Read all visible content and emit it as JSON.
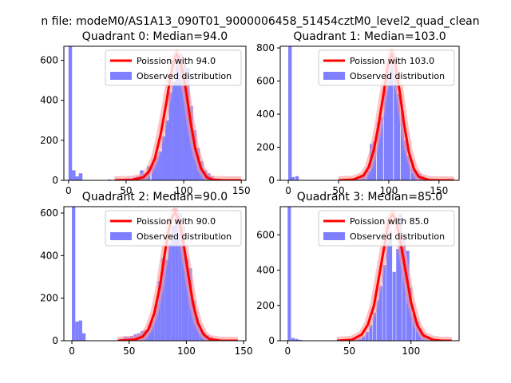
{
  "figure": {
    "title": "n file: modeM0/AS1A13_090T01_9000006458_51454cztM0_level2_quad_clean"
  },
  "colors": {
    "histogram": "#8080ff",
    "poisson_line": "#ff0000",
    "poisson_glow": "#ff9999",
    "axes": "#000000",
    "background": "#ffffff"
  },
  "chart_data": [
    {
      "type": "bar",
      "title": "Quadrant 0: Median=94.0",
      "xlim": [
        -4,
        154
      ],
      "ylim": [
        0,
        670
      ],
      "xticks": [
        0,
        50,
        100,
        150
      ],
      "yticks": [
        0,
        200,
        400,
        600
      ],
      "series": [
        {
          "name": "Poission with 94.0",
          "kind": "line",
          "x": [
            40,
            55,
            65,
            70,
            75,
            80,
            85,
            88,
            91,
            94,
            97,
            100,
            103,
            106,
            110,
            115,
            120,
            125,
            135,
            150
          ],
          "y": [
            0,
            2,
            15,
            45,
            110,
            230,
            390,
            500,
            590,
            635,
            590,
            520,
            410,
            290,
            160,
            60,
            15,
            3,
            0,
            0
          ]
        },
        {
          "name": "Observed distribution",
          "kind": "histogram",
          "bin_width": 3.1,
          "bins": [
            {
              "x": 0,
              "y": 670
            },
            {
              "x": 3,
              "y": 50
            },
            {
              "x": 6,
              "y": 20
            },
            {
              "x": 9,
              "y": 35
            },
            {
              "x": 34,
              "y": 4
            },
            {
              "x": 44,
              "y": 8
            },
            {
              "x": 50,
              "y": 10
            },
            {
              "x": 56,
              "y": 15
            },
            {
              "x": 59,
              "y": 20
            },
            {
              "x": 62,
              "y": 50
            },
            {
              "x": 65,
              "y": 35
            },
            {
              "x": 68,
              "y": 70
            },
            {
              "x": 72,
              "y": 85
            },
            {
              "x": 75,
              "y": 120
            },
            {
              "x": 78,
              "y": 145
            },
            {
              "x": 81,
              "y": 220
            },
            {
              "x": 84,
              "y": 300
            },
            {
              "x": 87,
              "y": 440
            },
            {
              "x": 90,
              "y": 495
            },
            {
              "x": 93,
              "y": 600
            },
            {
              "x": 96,
              "y": 630
            },
            {
              "x": 99,
              "y": 585
            },
            {
              "x": 102,
              "y": 560
            },
            {
              "x": 105,
              "y": 370
            },
            {
              "x": 108,
              "y": 250
            },
            {
              "x": 111,
              "y": 160
            },
            {
              "x": 114,
              "y": 95
            },
            {
              "x": 117,
              "y": 50
            },
            {
              "x": 120,
              "y": 35
            },
            {
              "x": 123,
              "y": 20
            },
            {
              "x": 126,
              "y": 10
            },
            {
              "x": 129,
              "y": 6
            },
            {
              "x": 132,
              "y": 4
            },
            {
              "x": 138,
              "y": 3
            },
            {
              "x": 144,
              "y": 2
            }
          ]
        }
      ],
      "legend": "upper right"
    },
    {
      "type": "bar",
      "title": "Quadrant 1: Median=103.0",
      "xlim": [
        -8,
        170
      ],
      "ylim": [
        0,
        810
      ],
      "xticks": [
        0,
        50,
        100,
        150
      ],
      "yticks": [
        0,
        200,
        400,
        600,
        800
      ],
      "series": [
        {
          "name": "Poission with 103.0",
          "kind": "line",
          "x": [
            50,
            65,
            75,
            80,
            85,
            90,
            95,
            99,
            103,
            107,
            111,
            115,
            120,
            125,
            130,
            140,
            150,
            165
          ],
          "y": [
            0,
            5,
            30,
            80,
            180,
            340,
            530,
            690,
            770,
            690,
            530,
            350,
            170,
            70,
            20,
            2,
            0,
            0
          ]
        },
        {
          "name": "Observed distribution",
          "kind": "histogram",
          "bin_width": 3.4,
          "bins": [
            {
              "x": 0,
              "y": 810
            },
            {
              "x": 3,
              "y": 20
            },
            {
              "x": 7,
              "y": 25
            },
            {
              "x": 67,
              "y": 12
            },
            {
              "x": 71,
              "y": 25
            },
            {
              "x": 74,
              "y": 40
            },
            {
              "x": 78,
              "y": 60
            },
            {
              "x": 81,
              "y": 220
            },
            {
              "x": 84,
              "y": 235
            },
            {
              "x": 88,
              "y": 350
            },
            {
              "x": 91,
              "y": 380
            },
            {
              "x": 95,
              "y": 550
            },
            {
              "x": 98,
              "y": 650
            },
            {
              "x": 101,
              "y": 700
            },
            {
              "x": 105,
              "y": 720
            },
            {
              "x": 108,
              "y": 520
            },
            {
              "x": 112,
              "y": 420
            },
            {
              "x": 115,
              "y": 240
            },
            {
              "x": 118,
              "y": 150
            },
            {
              "x": 122,
              "y": 95
            },
            {
              "x": 125,
              "y": 60
            },
            {
              "x": 129,
              "y": 40
            },
            {
              "x": 132,
              "y": 25
            },
            {
              "x": 135,
              "y": 15
            },
            {
              "x": 139,
              "y": 8
            },
            {
              "x": 142,
              "y": 4
            },
            {
              "x": 150,
              "y": 2
            },
            {
              "x": 162,
              "y": 2
            }
          ]
        }
      ],
      "legend": "upper right"
    },
    {
      "type": "bar",
      "title": "Quadrant 2: Median=90.0",
      "xlim": [
        -7,
        152
      ],
      "ylim": [
        0,
        630
      ],
      "xticks": [
        0,
        50,
        100,
        150
      ],
      "yticks": [
        0,
        200,
        400,
        600
      ],
      "series": [
        {
          "name": "Poission with 90.0",
          "kind": "line",
          "x": [
            40,
            55,
            62,
            67,
            72,
            77,
            82,
            86,
            90,
            94,
            98,
            102,
            106,
            110,
            115,
            120,
            130,
            145
          ],
          "y": [
            0,
            5,
            20,
            55,
            130,
            260,
            440,
            560,
            605,
            560,
            440,
            300,
            170,
            85,
            30,
            8,
            0,
            0
          ]
        },
        {
          "name": "Observed distribution",
          "kind": "histogram",
          "bin_width": 3.0,
          "bins": [
            {
              "x": 0,
              "y": 630
            },
            {
              "x": 3,
              "y": 90
            },
            {
              "x": 6,
              "y": 95
            },
            {
              "x": 9,
              "y": 35
            },
            {
              "x": 42,
              "y": 10
            },
            {
              "x": 45,
              "y": 20
            },
            {
              "x": 48,
              "y": 18
            },
            {
              "x": 51,
              "y": 22
            },
            {
              "x": 54,
              "y": 30
            },
            {
              "x": 57,
              "y": 35
            },
            {
              "x": 60,
              "y": 45
            },
            {
              "x": 63,
              "y": 50
            },
            {
              "x": 66,
              "y": 70
            },
            {
              "x": 69,
              "y": 95
            },
            {
              "x": 72,
              "y": 170
            },
            {
              "x": 75,
              "y": 280
            },
            {
              "x": 78,
              "y": 390
            },
            {
              "x": 81,
              "y": 380
            },
            {
              "x": 84,
              "y": 460
            },
            {
              "x": 87,
              "y": 540
            },
            {
              "x": 90,
              "y": 610
            },
            {
              "x": 93,
              "y": 600
            },
            {
              "x": 96,
              "y": 540
            },
            {
              "x": 99,
              "y": 380
            },
            {
              "x": 102,
              "y": 340
            },
            {
              "x": 105,
              "y": 190
            },
            {
              "x": 108,
              "y": 110
            },
            {
              "x": 111,
              "y": 55
            },
            {
              "x": 114,
              "y": 40
            },
            {
              "x": 117,
              "y": 25
            },
            {
              "x": 120,
              "y": 18
            },
            {
              "x": 123,
              "y": 10
            },
            {
              "x": 126,
              "y": 5
            },
            {
              "x": 135,
              "y": 2
            },
            {
              "x": 145,
              "y": 2
            }
          ]
        }
      ],
      "legend": "upper right"
    },
    {
      "type": "bar",
      "title": "Quadrant 3: Median=85.0",
      "xlim": [
        -6,
        139
      ],
      "ylim": [
        0,
        760
      ],
      "xticks": [
        0,
        50,
        100
      ],
      "yticks": [
        0,
        200,
        400,
        600
      ],
      "series": [
        {
          "name": "Poission with 85.0",
          "kind": "line",
          "x": [
            40,
            52,
            60,
            65,
            70,
            74,
            78,
            82,
            85,
            88,
            92,
            96,
            100,
            105,
            110,
            118,
            125,
            133
          ],
          "y": [
            0,
            5,
            35,
            90,
            200,
            360,
            520,
            680,
            720,
            680,
            540,
            380,
            220,
            90,
            30,
            5,
            0,
            0
          ]
        },
        {
          "name": "Observed distribution",
          "kind": "histogram",
          "bin_width": 2.7,
          "bins": [
            {
              "x": 0,
              "y": 760
            },
            {
              "x": 3,
              "y": 15
            },
            {
              "x": 6,
              "y": 10
            },
            {
              "x": 9,
              "y": 5
            },
            {
              "x": 54,
              "y": 10
            },
            {
              "x": 57,
              "y": 15
            },
            {
              "x": 60,
              "y": 25
            },
            {
              "x": 63,
              "y": 50
            },
            {
              "x": 66,
              "y": 90
            },
            {
              "x": 69,
              "y": 160
            },
            {
              "x": 72,
              "y": 230
            },
            {
              "x": 74,
              "y": 310
            },
            {
              "x": 77,
              "y": 430
            },
            {
              "x": 80,
              "y": 560
            },
            {
              "x": 82,
              "y": 620
            },
            {
              "x": 85,
              "y": 390
            },
            {
              "x": 88,
              "y": 520
            },
            {
              "x": 90,
              "y": 720
            },
            {
              "x": 93,
              "y": 600
            },
            {
              "x": 96,
              "y": 510
            },
            {
              "x": 98,
              "y": 300
            },
            {
              "x": 101,
              "y": 150
            },
            {
              "x": 104,
              "y": 110
            },
            {
              "x": 106,
              "y": 70
            },
            {
              "x": 109,
              "y": 40
            },
            {
              "x": 112,
              "y": 25
            },
            {
              "x": 114,
              "y": 15
            },
            {
              "x": 117,
              "y": 8
            },
            {
              "x": 120,
              "y": 5
            },
            {
              "x": 128,
              "y": 2
            }
          ]
        }
      ],
      "legend": "upper right"
    }
  ]
}
